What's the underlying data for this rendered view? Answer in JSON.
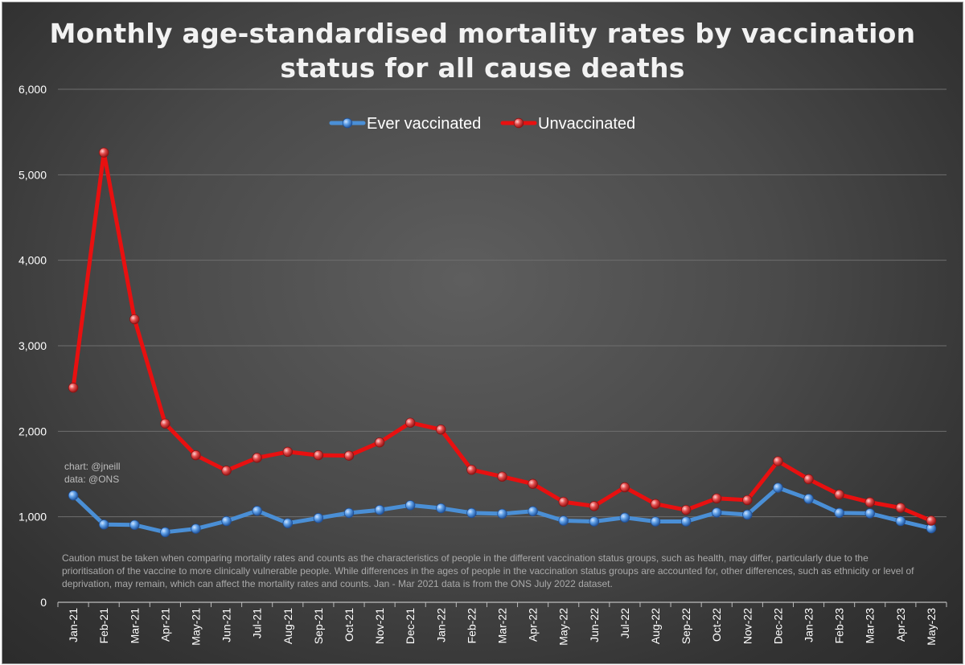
{
  "chart_data": {
    "type": "line",
    "title_lines": [
      "Monthly age-standardised mortality rates by vaccination",
      "status for all cause deaths"
    ],
    "categories": [
      "Jan-21",
      "Feb-21",
      "Mar-21",
      "Apr-21",
      "May-21",
      "Jun-21",
      "Jul-21",
      "Aug-21",
      "Sep-21",
      "Oct-21",
      "Nov-21",
      "Dec-21",
      "Jan-22",
      "Feb-22",
      "Mar-22",
      "Apr-22",
      "May-22",
      "Jun-22",
      "Jul-22",
      "Aug-22",
      "Sep-22",
      "Oct-22",
      "Nov-22",
      "Dec-22",
      "Jan-23",
      "Feb-23",
      "Mar-23",
      "Apr-23",
      "May-23"
    ],
    "series": [
      {
        "name": "Ever vaccinated",
        "color": "#4a8fd6",
        "values": [
          1250,
          910,
          905,
          820,
          860,
          950,
          1070,
          925,
          985,
          1045,
          1080,
          1135,
          1100,
          1045,
          1035,
          1065,
          955,
          945,
          990,
          945,
          945,
          1050,
          1025,
          1340,
          1210,
          1045,
          1040,
          950,
          865
        ]
      },
      {
        "name": "Unvaccinated",
        "color": "#e81010",
        "values": [
          2510,
          5260,
          3310,
          2090,
          1720,
          1540,
          1690,
          1760,
          1720,
          1715,
          1870,
          2100,
          2020,
          1550,
          1470,
          1385,
          1175,
          1125,
          1345,
          1150,
          1080,
          1215,
          1195,
          1650,
          1440,
          1260,
          1170,
          1105,
          955
        ]
      }
    ],
    "yticks": [
      "0",
      "1,000",
      "2,000",
      "3,000",
      "4,000",
      "5,000",
      "6,000"
    ],
    "ylim": [
      0,
      6000
    ],
    "grid": true,
    "legend_position": "top-center",
    "xlabel": "",
    "ylabel": ""
  },
  "credit": {
    "chart": "chart: @jneill",
    "data": "data: @ONS"
  },
  "caution": "Caution must be taken when comparing mortality rates and counts as the characteristics of people in the different vaccination status groups, such as health, may differ, particularly due to the prioritisation of the vaccine to more clinically vulnerable people. While differences in the ages of people in the vaccination status groups are accounted for, other differences, such as ethnicity or level of deprivation, may remain, which can affect the mortality rates and counts. Jan - Mar 2021 data is from the ONS July 2022 dataset."
}
